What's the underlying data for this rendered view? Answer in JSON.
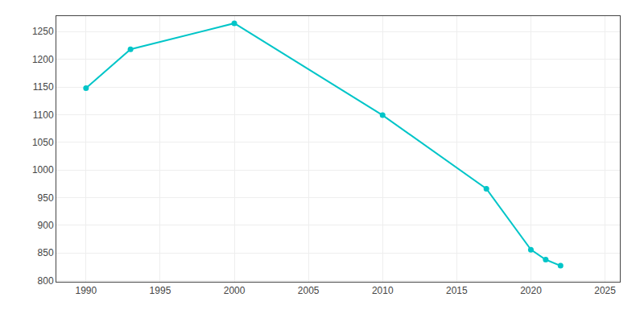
{
  "chart_data": {
    "type": "line",
    "x": [
      1990,
      1993,
      2000,
      2010,
      2017,
      2020,
      2021,
      2022
    ],
    "values": [
      1148,
      1218,
      1265,
      1099,
      966,
      856,
      838,
      827
    ],
    "color": "#00C5C8",
    "marker": "circle",
    "xlim": [
      1988,
      2026
    ],
    "ylim": [
      798,
      1278
    ],
    "xticks": [
      1990,
      1995,
      2000,
      2005,
      2010,
      2015,
      2020,
      2025
    ],
    "yticks": [
      800,
      850,
      900,
      950,
      1000,
      1050,
      1100,
      1150,
      1200,
      1250
    ],
    "grid": true
  }
}
